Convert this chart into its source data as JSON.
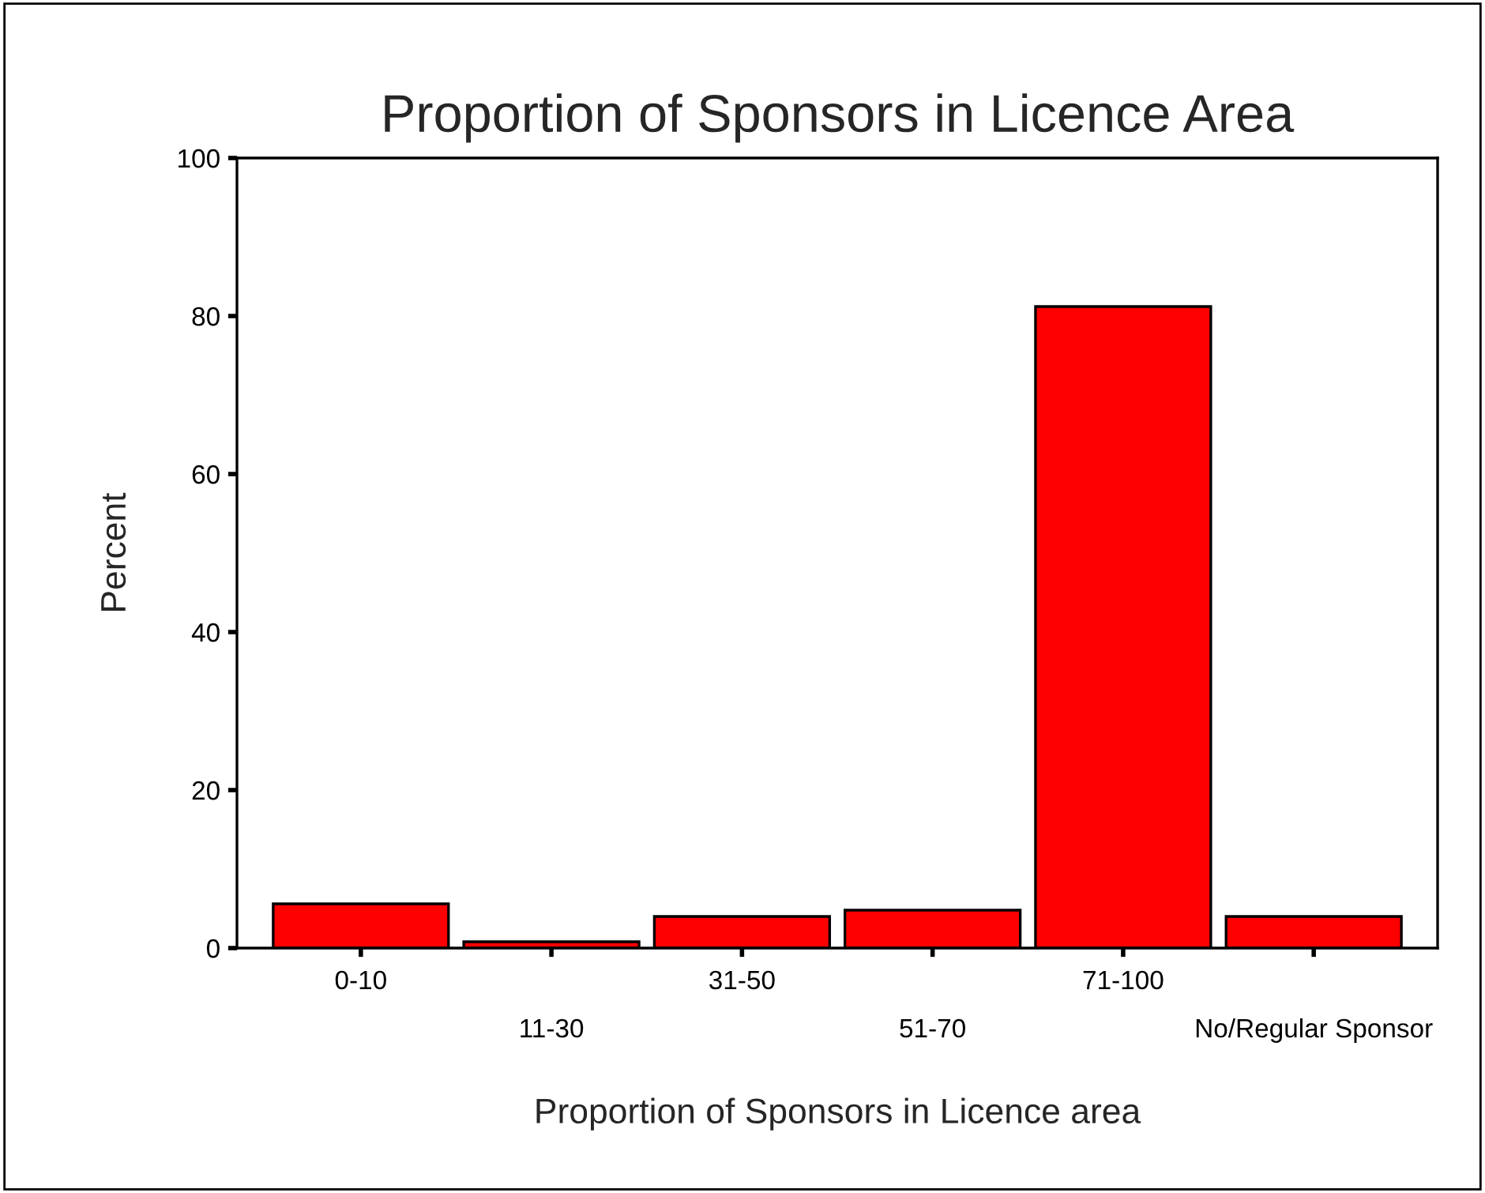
{
  "chart_data": {
    "type": "bar",
    "title": "Proportion of Sponsors in Licence Area",
    "xlabel": "Proportion of Sponsors in Licence area",
    "ylabel": "Percent",
    "categories": [
      "0-10",
      "11-30",
      "31-50",
      "51-70",
      "71-100",
      "No/Regular Sponsor"
    ],
    "values": [
      5.6,
      0.8,
      4.0,
      4.8,
      81.2,
      4.0
    ],
    "color": "#ff0000",
    "ylim": [
      0,
      100
    ],
    "yticks": [
      0,
      20,
      40,
      60,
      80,
      100
    ],
    "grid": false
  }
}
